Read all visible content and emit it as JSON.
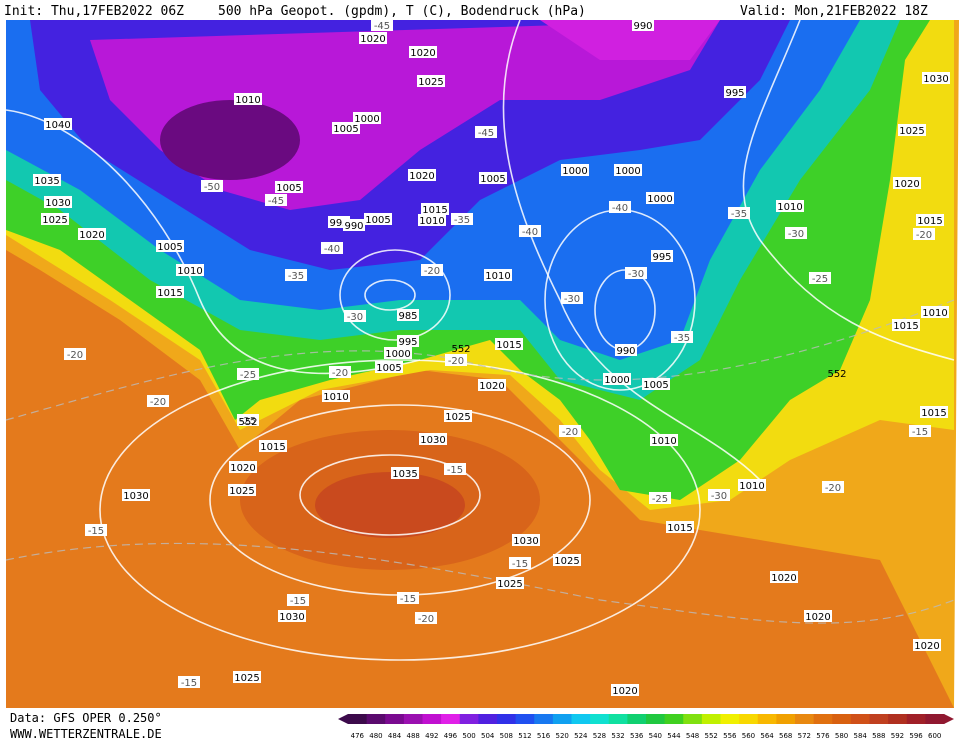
{
  "header": {
    "init": "Init: Thu,17FEB2022 06Z",
    "title": "500 hPa Geopot. (gpdm), T (C), Bodendruck (hPa)",
    "valid": "Valid: Mon,21FEB2022 18Z"
  },
  "footer": {
    "data": "Data: GFS OPER 0.250°",
    "site": "WWW.WETTERZENTRALE.DE"
  },
  "scale": {
    "ticks": [
      476,
      480,
      484,
      488,
      492,
      496,
      500,
      504,
      508,
      512,
      516,
      520,
      524,
      528,
      532,
      536,
      540,
      544,
      548,
      552,
      556,
      560,
      564,
      568,
      572,
      576,
      580,
      584,
      588,
      592,
      596,
      600
    ],
    "colors": [
      "#3c0a4b",
      "#5a0a6e",
      "#7a0a90",
      "#9a10b0",
      "#c010d0",
      "#e020e8",
      "#8020e0",
      "#5020e0",
      "#3030e8",
      "#2050f0",
      "#1878f0",
      "#10a0f0",
      "#10c8f0",
      "#10e0d0",
      "#10e0a0",
      "#10d070",
      "#20c840",
      "#40d020",
      "#80e010",
      "#c0f000",
      "#f0f000",
      "#f8d800",
      "#f8b800",
      "#f0a000",
      "#e88810",
      "#e07010",
      "#d86010",
      "#d05018",
      "#c04020",
      "#b03020",
      "#a02028",
      "#901830"
    ]
  },
  "pressure_labels": [
    1020,
    1020,
    1025,
    990,
    995,
    1030,
    1010,
    1040,
    1000,
    1005,
    1025,
    1035,
    1030,
    1025,
    1020,
    1005,
    1020,
    1005,
    1000,
    1000,
    1000,
    1010,
    1020,
    1015,
    995,
    990,
    1005,
    1015,
    1010,
    1005,
    1010,
    1015,
    1010,
    995,
    985,
    995,
    1000,
    1005,
    1015,
    990,
    1020,
    1000,
    1005,
    1010,
    1010,
    1015,
    1025,
    1030,
    1015,
    1010,
    1020,
    1035,
    1015,
    1025,
    1030,
    1010,
    1015,
    1030,
    1025,
    1025,
    1020,
    1030,
    1020,
    1020,
    1025,
    1020
  ],
  "temperature_labels": [
    -45,
    -45,
    -50,
    -45,
    -35,
    -35,
    -40,
    -40,
    -30,
    -20,
    -40,
    -35,
    -20,
    -30,
    -25,
    -30,
    -30,
    -35,
    -20,
    -20,
    -25,
    -20,
    -20,
    -25,
    -20,
    -15,
    -15,
    -20,
    -25,
    -30,
    -15,
    -15,
    -15,
    -15,
    -20,
    -15
  ],
  "height_labels": [
    552,
    552,
    552
  ]
}
